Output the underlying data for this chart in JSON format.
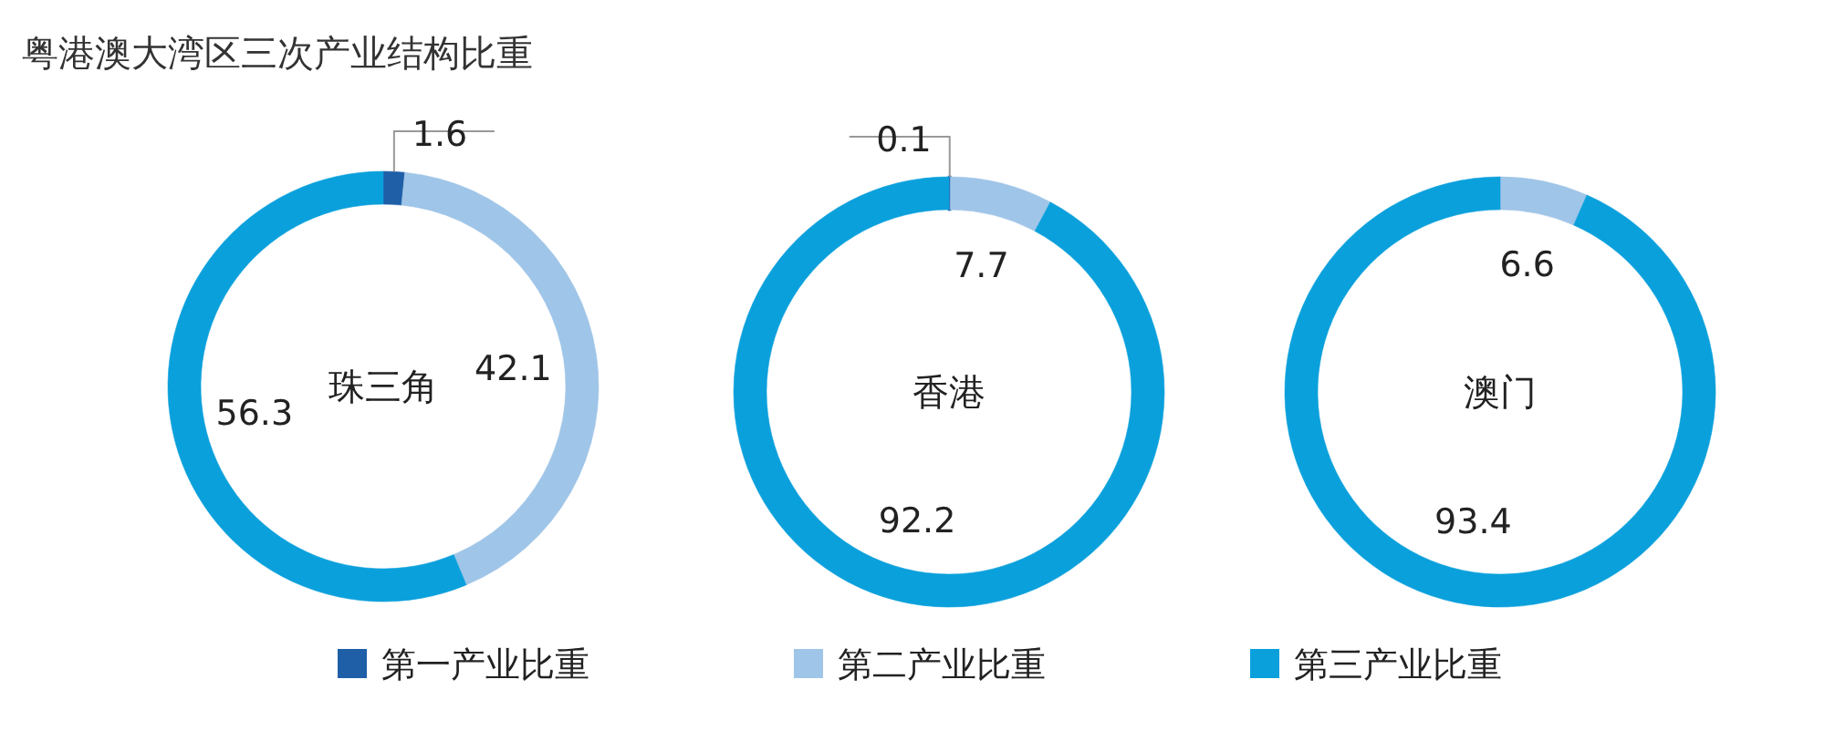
{
  "chart_data": [
    {
      "type": "donut",
      "title": "粤港澳大湾区三次产业结构比重",
      "annotations": [
        "珠三角"
      ],
      "categories": [
        "第一产业比重",
        "第二产业比重",
        "第三产业比重"
      ],
      "values": [
        1.6,
        42.1,
        56.3
      ],
      "colors": [
        "#1f5fa8",
        "#9fc5e8",
        "#0aa0dc"
      ],
      "data_labels": true,
      "legend": "bottom"
    },
    {
      "type": "donut",
      "annotations": [
        "香港"
      ],
      "categories": [
        null,
        null,
        null
      ],
      "values": [
        0.1,
        7.7,
        92.2
      ],
      "colors": [
        "#1f5fa8",
        "#9fc5e8",
        "#0aa0dc"
      ],
      "data_labels": true
    },
    {
      "type": "donut",
      "annotations": [
        "澳门"
      ],
      "categories": [
        null,
        null
      ],
      "values": [
        6.6,
        93.4
      ],
      "colors": [
        "#9fc5e8",
        "#0aa0dc"
      ],
      "data_labels": true
    }
  ]
}
